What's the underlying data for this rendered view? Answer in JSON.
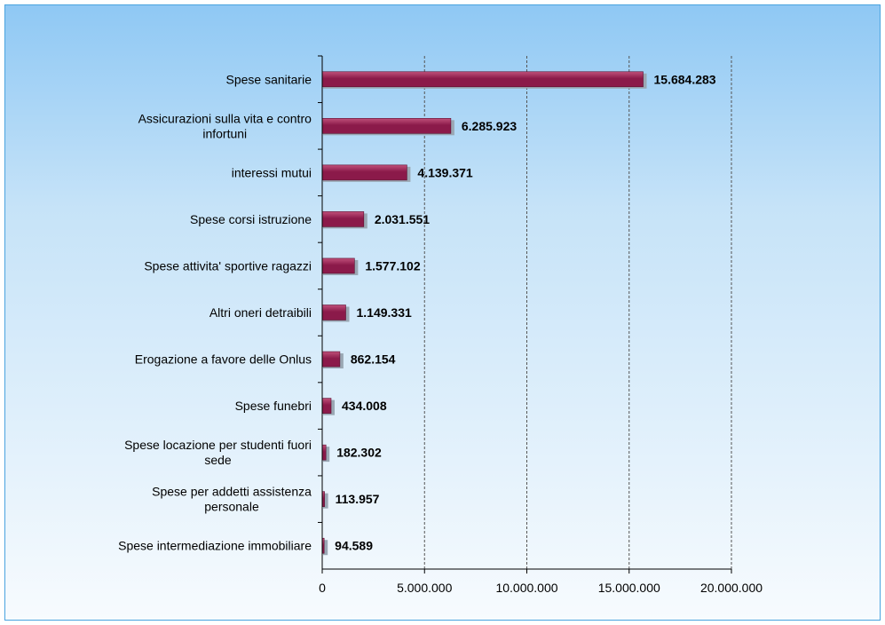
{
  "chart_data": {
    "type": "bar",
    "orientation": "horizontal",
    "title": "",
    "xlabel": "",
    "ylabel": "",
    "categories": [
      [
        "Spese sanitarie"
      ],
      [
        "Assicurazioni sulla vita e contro",
        "infortuni"
      ],
      [
        "interessi mutui"
      ],
      [
        "Spese corsi istruzione"
      ],
      [
        "Spese attivita' sportive ragazzi"
      ],
      [
        "Altri oneri detraibili"
      ],
      [
        "Erogazione a favore delle Onlus"
      ],
      [
        "Spese funebri"
      ],
      [
        "Spese locazione per studenti fuori",
        "sede"
      ],
      [
        "Spese per addetti assistenza",
        "personale"
      ],
      [
        "Spese intermediazione immobiliare"
      ]
    ],
    "values": [
      15684283,
      6285923,
      4139371,
      2031551,
      1577102,
      1149331,
      862154,
      434008,
      182302,
      113957,
      94589
    ],
    "value_labels": [
      "15.684.283",
      "6.285.923",
      "4.139.371",
      "2.031.551",
      "1.577.102",
      "1.149.331",
      "862.154",
      "434.008",
      "182.302",
      "113.957",
      "94.589"
    ],
    "xlim": [
      0,
      20000000
    ],
    "xticks": [
      0,
      5000000,
      10000000,
      15000000,
      20000000
    ],
    "xtick_labels": [
      "0",
      "5.000.000",
      "10.000.000",
      "15.000.000",
      "20.000.000"
    ],
    "grid": "vertical dashed",
    "legend": "none",
    "colors": {
      "bar": "#8b1a4a",
      "bar_highlight": "#c0507a",
      "bar_shadow": "#9aa8b4",
      "grid": "#555555",
      "axis": "#000000"
    }
  }
}
